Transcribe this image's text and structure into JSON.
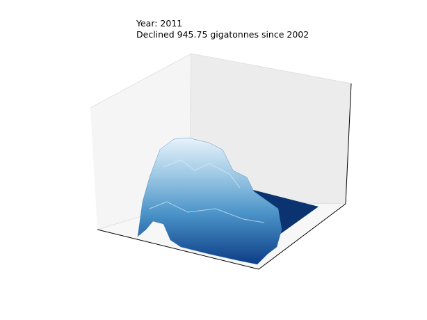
{
  "chart_data": {
    "type": "surface",
    "title": "Year: 2011",
    "subtitle": "Declined 945.75 gigatonnes since 2002"
  }
}
